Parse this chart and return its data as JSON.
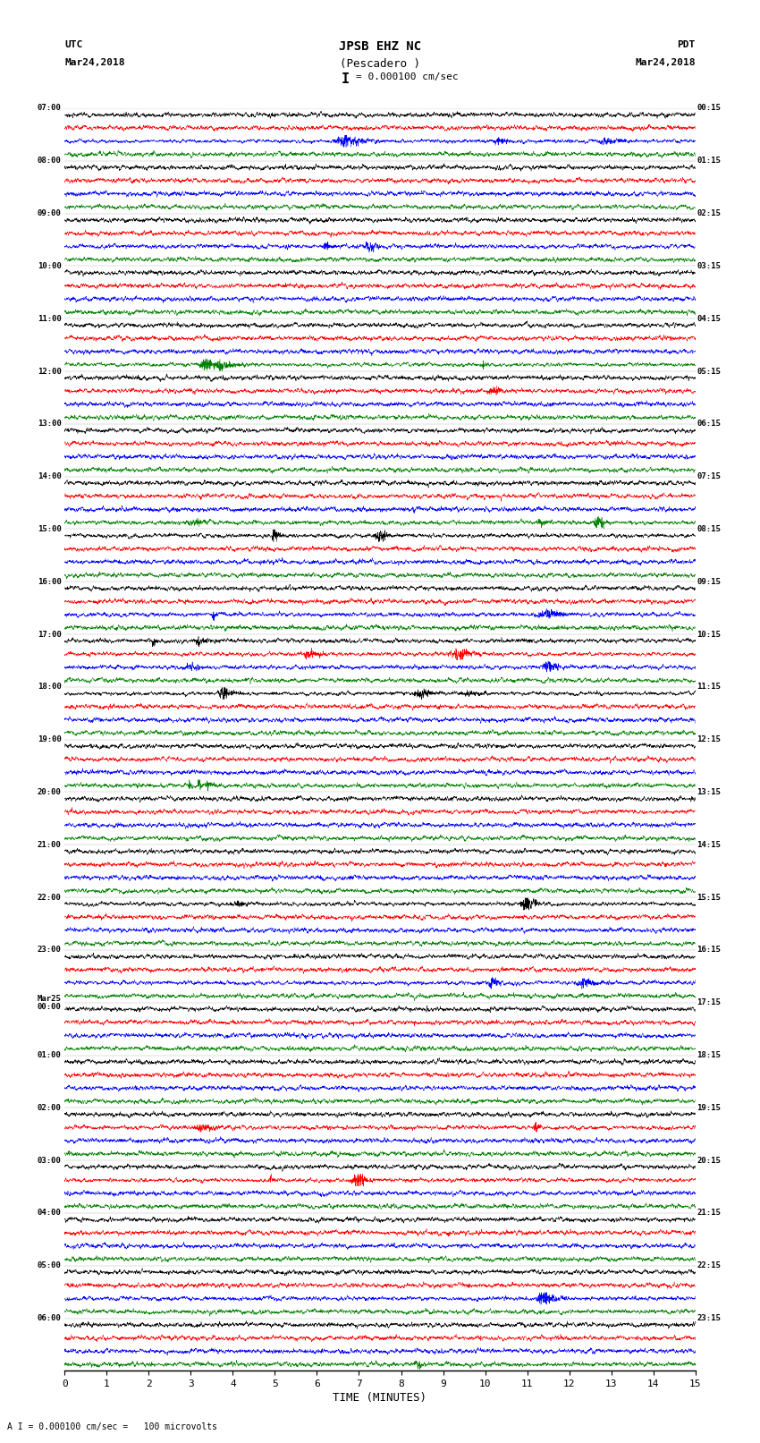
{
  "title_line1": "JPSB EHZ NC",
  "title_line2": "(Pescadero )",
  "title_scale": "I = 0.000100 cm/sec",
  "left_header_line1": "UTC",
  "left_header_line2": "Mar24,2018",
  "right_header_line1": "PDT",
  "right_header_line2": "Mar24,2018",
  "xlabel": "TIME (MINUTES)",
  "bottom_note": "A I = 0.000100 cm/sec =   100 microvolts",
  "utc_labels": [
    "07:00",
    "08:00",
    "09:00",
    "10:00",
    "11:00",
    "12:00",
    "13:00",
    "14:00",
    "15:00",
    "16:00",
    "17:00",
    "18:00",
    "19:00",
    "20:00",
    "21:00",
    "22:00",
    "23:00",
    "Mar25\n00:00",
    "01:00",
    "02:00",
    "03:00",
    "04:00",
    "05:00",
    "06:00"
  ],
  "pdt_labels": [
    "00:15",
    "01:15",
    "02:15",
    "03:15",
    "04:15",
    "05:15",
    "06:15",
    "07:15",
    "08:15",
    "09:15",
    "10:15",
    "11:15",
    "12:15",
    "13:15",
    "14:15",
    "15:15",
    "16:15",
    "17:15",
    "18:15",
    "19:15",
    "20:15",
    "21:15",
    "22:15",
    "23:15"
  ],
  "colors": [
    "black",
    "red",
    "blue",
    "green"
  ],
  "num_hours": 24,
  "traces_per_hour": 4,
  "time_minutes": 15,
  "background_color": "white",
  "random_seed": 42,
  "fig_width": 8.5,
  "fig_height": 16.13,
  "dpi": 100
}
